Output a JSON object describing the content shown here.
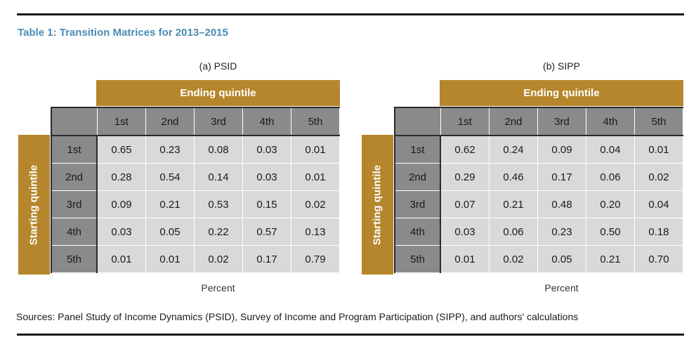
{
  "title": "Table 1: Transition Matrices for 2013–2015",
  "sources": "Sources: Panel Study of Income Dynamics (PSID), Survey of Income and Program Participation (SIPP), and authors' calculations",
  "colors": {
    "accent": "#b5862b",
    "header_gray": "#8a8a8a",
    "cell_gray": "#d9d9d9",
    "title_blue": "#4a8cb5"
  },
  "chart_data": [
    {
      "type": "table",
      "subtitle": "(a) PSID",
      "column_group_label": "Ending quintile",
      "row_group_label": "Starting quintile",
      "columns": [
        "1st",
        "2nd",
        "3rd",
        "4th",
        "5th"
      ],
      "rows": [
        "1st",
        "2nd",
        "3rd",
        "4th",
        "5th"
      ],
      "values": [
        [
          "0.65",
          "0.23",
          "0.08",
          "0.03",
          "0.01"
        ],
        [
          "0.28",
          "0.54",
          "0.14",
          "0.03",
          "0.01"
        ],
        [
          "0.09",
          "0.21",
          "0.53",
          "0.15",
          "0.02"
        ],
        [
          "0.03",
          "0.05",
          "0.22",
          "0.57",
          "0.13"
        ],
        [
          "0.01",
          "0.01",
          "0.02",
          "0.17",
          "0.79"
        ]
      ],
      "note": "Percent"
    },
    {
      "type": "table",
      "subtitle": "(b) SIPP",
      "column_group_label": "Ending quintile",
      "row_group_label": "Starting quintile",
      "columns": [
        "1st",
        "2nd",
        "3rd",
        "4th",
        "5th"
      ],
      "rows": [
        "1st",
        "2nd",
        "3rd",
        "4th",
        "5th"
      ],
      "values": [
        [
          "0.62",
          "0.24",
          "0.09",
          "0.04",
          "0.01"
        ],
        [
          "0.29",
          "0.46",
          "0.17",
          "0.06",
          "0.02"
        ],
        [
          "0.07",
          "0.21",
          "0.48",
          "0.20",
          "0.04"
        ],
        [
          "0.03",
          "0.06",
          "0.23",
          "0.50",
          "0.18"
        ],
        [
          "0.01",
          "0.02",
          "0.05",
          "0.21",
          "0.70"
        ]
      ],
      "note": "Percent"
    }
  ]
}
